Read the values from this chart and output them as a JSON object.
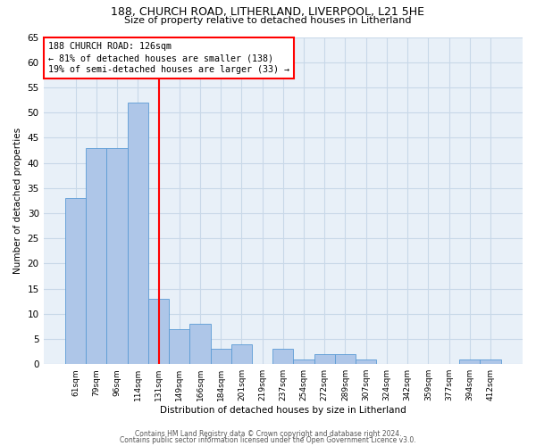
{
  "title1": "188, CHURCH ROAD, LITHERLAND, LIVERPOOL, L21 5HE",
  "title2": "Size of property relative to detached houses in Litherland",
  "xlabel": "Distribution of detached houses by size in Litherland",
  "ylabel": "Number of detached properties",
  "categories": [
    "61sqm",
    "79sqm",
    "96sqm",
    "114sqm",
    "131sqm",
    "149sqm",
    "166sqm",
    "184sqm",
    "201sqm",
    "219sqm",
    "237sqm",
    "254sqm",
    "272sqm",
    "289sqm",
    "307sqm",
    "324sqm",
    "342sqm",
    "359sqm",
    "377sqm",
    "394sqm",
    "412sqm"
  ],
  "values": [
    33,
    43,
    43,
    52,
    13,
    7,
    8,
    3,
    4,
    0,
    3,
    1,
    2,
    2,
    1,
    0,
    0,
    0,
    0,
    1,
    1
  ],
  "bar_color": "#aec6e8",
  "bar_edge_color": "#5b9bd5",
  "vline_x_index": 4,
  "vline_color": "red",
  "annotation_line1": "188 CHURCH ROAD: 126sqm",
  "annotation_line2": "← 81% of detached houses are smaller (138)",
  "annotation_line3": "19% of semi-detached houses are larger (33) →",
  "annotation_box_color": "white",
  "annotation_box_edge_color": "red",
  "ylim": [
    0,
    65
  ],
  "yticks": [
    0,
    5,
    10,
    15,
    20,
    25,
    30,
    35,
    40,
    45,
    50,
    55,
    60,
    65
  ],
  "grid_color": "#c8d8e8",
  "bg_color": "#e8f0f8",
  "footer1": "Contains HM Land Registry data © Crown copyright and database right 2024.",
  "footer2": "Contains public sector information licensed under the Open Government Licence v3.0."
}
